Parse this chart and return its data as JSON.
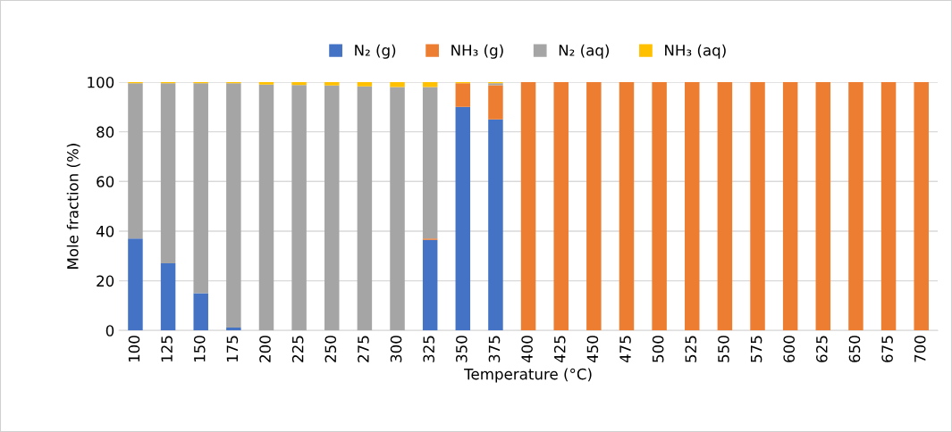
{
  "chart_data": {
    "type": "bar",
    "stacked": true,
    "xlabel": "Temperature (°C)",
    "ylabel": "Mole fraction (%)",
    "categories": [
      "100",
      "125",
      "150",
      "175",
      "200",
      "225",
      "250",
      "275",
      "300",
      "325",
      "350",
      "375",
      "400",
      "425",
      "450",
      "475",
      "500",
      "525",
      "550",
      "575",
      "600",
      "625",
      "650",
      "675",
      "700"
    ],
    "series": [
      {
        "name": "N₂ (g)",
        "color": "#4472c4",
        "values": [
          37,
          27,
          15,
          1.2,
          0,
          0,
          0,
          0,
          0,
          36.5,
          90,
          85,
          0,
          0,
          0,
          0,
          0,
          0,
          0,
          0,
          0,
          0,
          0,
          0,
          0
        ]
      },
      {
        "name": "NH₃ (g)",
        "color": "#ed7d31",
        "values": [
          0,
          0,
          0,
          0,
          0,
          0,
          0,
          0,
          0,
          0.5,
          9.5,
          13.7,
          100,
          100,
          100,
          100,
          100,
          100,
          100,
          100,
          100,
          100,
          100,
          100,
          100
        ]
      },
      {
        "name": "N₂ (aq)",
        "color": "#a5a5a5",
        "values": [
          62.5,
          72.5,
          84.5,
          98.3,
          99,
          98.8,
          98.6,
          98.3,
          98,
          61,
          0,
          0.8,
          0,
          0,
          0,
          0,
          0,
          0,
          0,
          0,
          0,
          0,
          0,
          0,
          0
        ]
      },
      {
        "name": "NH₃ (aq)",
        "color": "#ffc000",
        "values": [
          0.5,
          0.5,
          0.5,
          0.5,
          1,
          1.2,
          1.4,
          1.7,
          2,
          2,
          0.5,
          0.5,
          0,
          0,
          0,
          0,
          0,
          0,
          0,
          0,
          0,
          0,
          0,
          0,
          0
        ]
      }
    ],
    "ylim": [
      0,
      100
    ],
    "yticks": [
      0,
      20,
      40,
      60,
      80,
      100
    ],
    "grid": "y",
    "legend": "top"
  }
}
